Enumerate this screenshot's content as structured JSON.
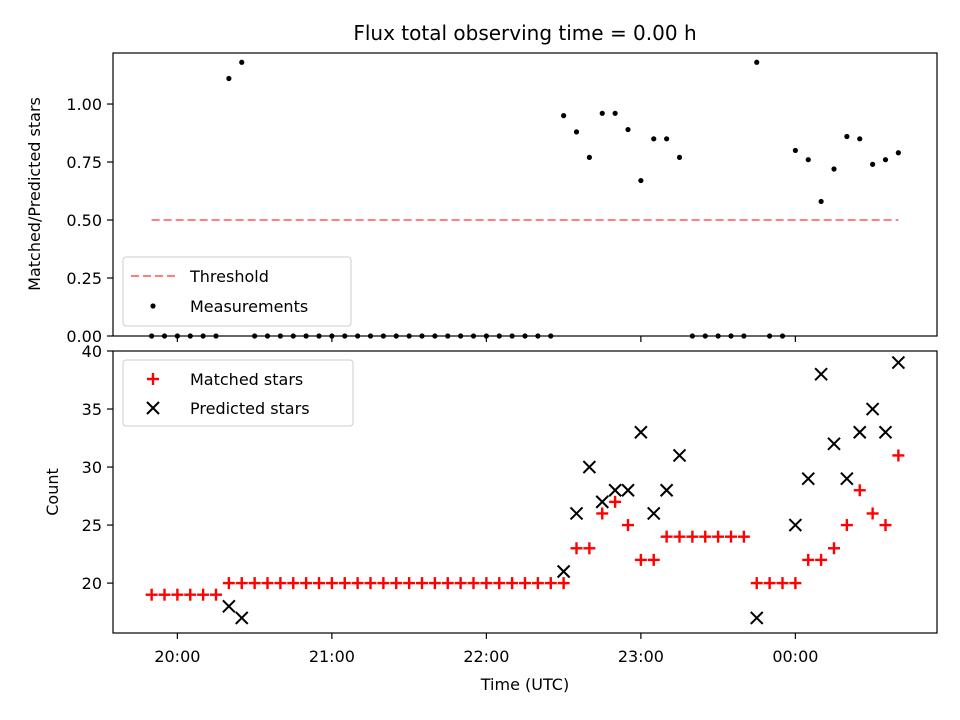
{
  "chart_data": [
    {
      "type": "scatter",
      "title": "Flux total observing time = 0.00 h",
      "ylabel": "Matched/Predicted stars",
      "ylim": [
        0,
        1.22
      ],
      "yticks": [
        "0.00",
        "0.25",
        "0.50",
        "0.75",
        "1.00"
      ],
      "legend_position": "lower-left",
      "threshold": {
        "name": "Threshold",
        "value": 0.5,
        "x_range": [
          "19:50",
          "00:40"
        ],
        "color": "#ff7f7f",
        "style": "dashed"
      },
      "series": [
        {
          "name": "Measurements",
          "color": "#000000",
          "marker": "dot",
          "x": [
            "19:50",
            "19:55",
            "20:00",
            "20:05",
            "20:10",
            "20:15",
            "20:20",
            "20:25",
            "20:30",
            "20:35",
            "20:40",
            "20:45",
            "20:50",
            "20:55",
            "21:00",
            "21:05",
            "21:10",
            "21:15",
            "21:20",
            "21:25",
            "21:30",
            "21:35",
            "21:40",
            "21:45",
            "21:50",
            "21:55",
            "22:00",
            "22:05",
            "22:10",
            "22:15",
            "22:20",
            "22:25",
            "22:30",
            "22:35",
            "22:40",
            "22:45",
            "22:50",
            "22:55",
            "23:00",
            "23:05",
            "23:10",
            "23:15",
            "23:20",
            "23:25",
            "23:30",
            "23:35",
            "23:40",
            "23:45",
            "23:50",
            "23:55",
            "00:00",
            "00:05",
            "00:10",
            "00:15",
            "00:20",
            "00:25",
            "00:30",
            "00:35",
            "00:40"
          ],
          "y": [
            0.0,
            0.0,
            0.0,
            0.0,
            0.0,
            0.0,
            1.11,
            1.18,
            0.0,
            0.0,
            0.0,
            0.0,
            0.0,
            0.0,
            0.0,
            0.0,
            0.0,
            0.0,
            0.0,
            0.0,
            0.0,
            0.0,
            0.0,
            0.0,
            0.0,
            0.0,
            0.0,
            0.0,
            0.0,
            0.0,
            0.0,
            0.0,
            0.95,
            0.88,
            0.77,
            0.96,
            0.96,
            0.89,
            0.67,
            0.85,
            0.85,
            0.77,
            0.0,
            0.0,
            0.0,
            0.0,
            0.0,
            1.18,
            0.0,
            0.0,
            0.8,
            0.76,
            0.58,
            0.72,
            0.86,
            0.85,
            0.74,
            0.76,
            0.79
          ]
        }
      ]
    },
    {
      "type": "scatter",
      "xlabel": "Time (UTC)",
      "ylabel": "Count",
      "ylim": [
        15.7,
        40
      ],
      "yticks": [
        "20",
        "25",
        "30",
        "35",
        "40"
      ],
      "xlim": [
        "19:35",
        "00:55"
      ],
      "xticks": [
        "20:00",
        "21:00",
        "22:00",
        "23:00",
        "00:00"
      ],
      "legend_position": "top-left",
      "series": [
        {
          "name": "Matched stars",
          "color": "#ff0000",
          "marker": "plus",
          "x": [
            "19:50",
            "19:55",
            "20:00",
            "20:05",
            "20:10",
            "20:15",
            "20:20",
            "20:25",
            "20:30",
            "20:35",
            "20:40",
            "20:45",
            "20:50",
            "20:55",
            "21:00",
            "21:05",
            "21:10",
            "21:15",
            "21:20",
            "21:25",
            "21:30",
            "21:35",
            "21:40",
            "21:45",
            "21:50",
            "21:55",
            "22:00",
            "22:05",
            "22:10",
            "22:15",
            "22:20",
            "22:25",
            "22:30",
            "22:35",
            "22:40",
            "22:45",
            "22:50",
            "22:55",
            "23:00",
            "23:05",
            "23:10",
            "23:15",
            "23:20",
            "23:25",
            "23:30",
            "23:35",
            "23:40",
            "23:45",
            "23:50",
            "23:55",
            "00:00",
            "00:05",
            "00:10",
            "00:15",
            "00:20",
            "00:25",
            "00:30",
            "00:35",
            "00:40"
          ],
          "y": [
            19,
            19,
            19,
            19,
            19,
            19,
            20,
            20,
            20,
            20,
            20,
            20,
            20,
            20,
            20,
            20,
            20,
            20,
            20,
            20,
            20,
            20,
            20,
            20,
            20,
            20,
            20,
            20,
            20,
            20,
            20,
            20,
            20,
            23,
            23,
            26,
            27,
            25,
            22,
            22,
            24,
            24,
            24,
            24,
            24,
            24,
            24,
            20,
            20,
            20,
            20,
            22,
            22,
            23,
            25,
            28,
            26,
            25,
            31
          ]
        },
        {
          "name": "Predicted stars",
          "color": "#000000",
          "marker": "x",
          "x": [
            "20:20",
            "20:25",
            "22:30",
            "22:35",
            "22:40",
            "22:45",
            "22:50",
            "22:55",
            "23:00",
            "23:05",
            "23:10",
            "23:15",
            "23:45",
            "00:00",
            "00:05",
            "00:10",
            "00:15",
            "00:20",
            "00:25",
            "00:30",
            "00:35",
            "00:40"
          ],
          "y": [
            18,
            17,
            21,
            26,
            30,
            27,
            28,
            28,
            33,
            26,
            28,
            31,
            17,
            25,
            29,
            38,
            32,
            29,
            33,
            35,
            33,
            39
          ]
        }
      ]
    }
  ]
}
